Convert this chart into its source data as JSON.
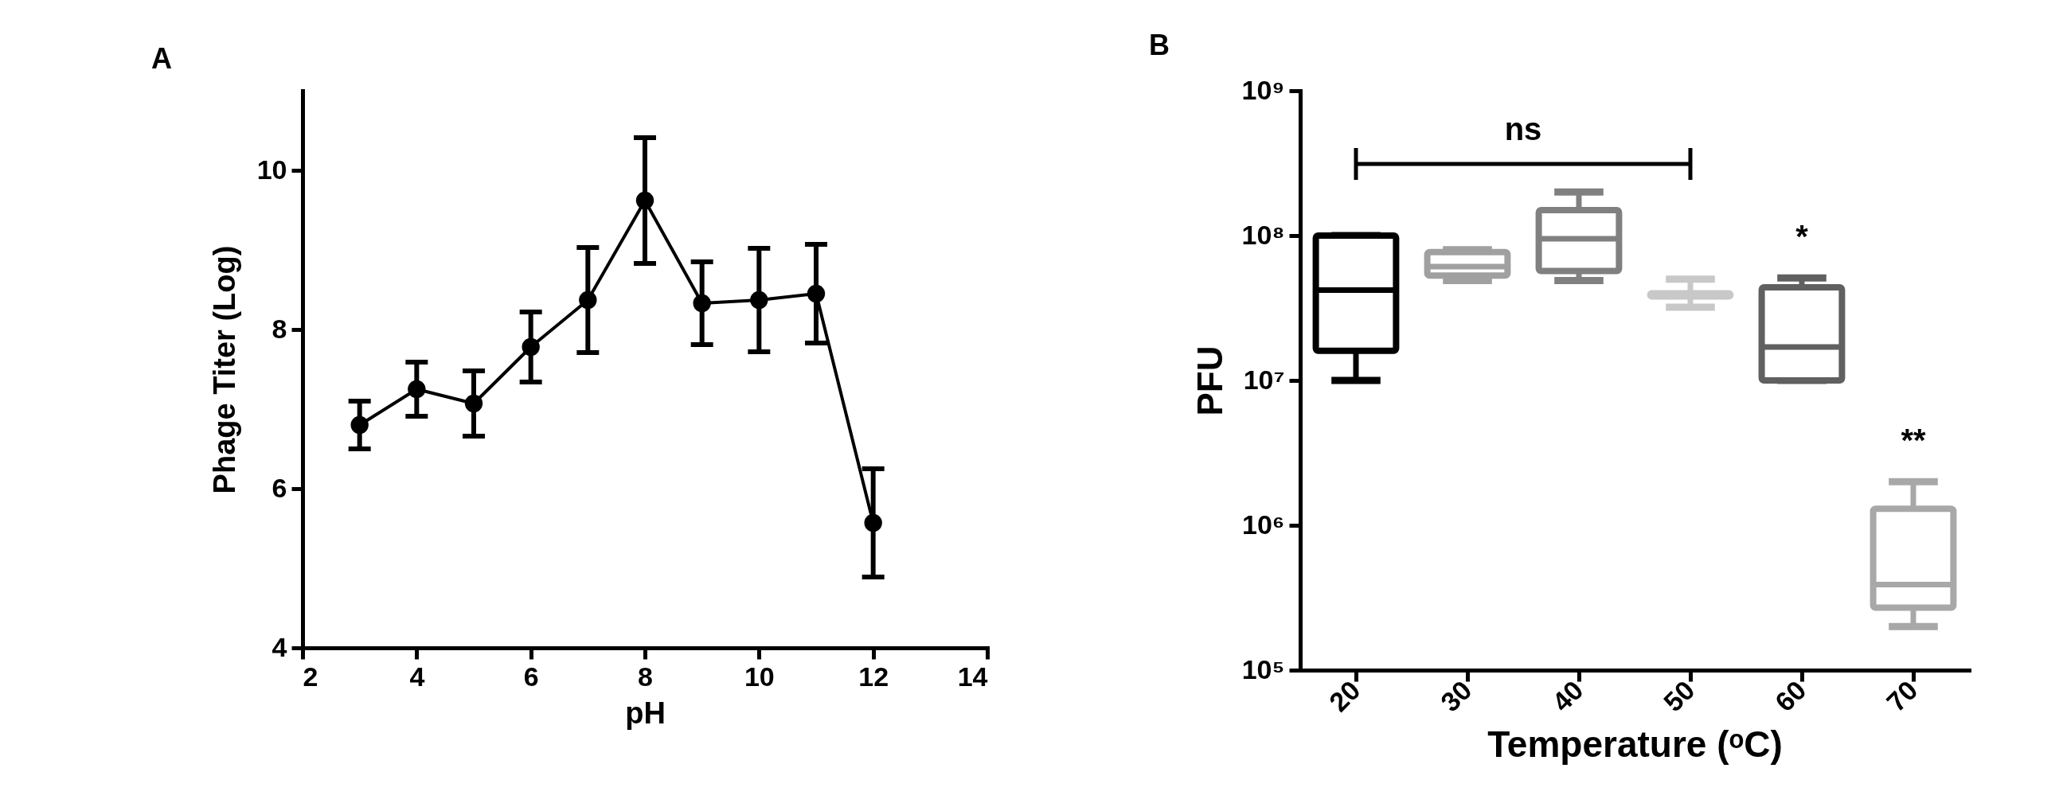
{
  "chart_data": [
    {
      "type": "line",
      "title": "A",
      "xlabel": "pH",
      "ylabel": "Phage Titer (Log)",
      "x": [
        3,
        4,
        5,
        6,
        7,
        8,
        9,
        10,
        11,
        12
      ],
      "series": [
        {
          "color": "#000000",
          "values": [
            6.8,
            7.25,
            7.07,
            7.78,
            8.37,
            9.62,
            8.33,
            8.37,
            8.45,
            5.57
          ],
          "errors": [
            0.3,
            0.34,
            0.41,
            0.44,
            0.66,
            0.79,
            0.52,
            0.65,
            0.62,
            0.68
          ]
        }
      ],
      "marker": "circle",
      "line_style": "solid",
      "xlim": [
        2,
        14
      ],
      "xticks": [
        2,
        4,
        6,
        8,
        10,
        12,
        14
      ],
      "ylim": [
        4,
        11
      ],
      "yticks": [
        4,
        6,
        8,
        10
      ]
    },
    {
      "type": "box",
      "title": "B",
      "xlabel": "Temperature (ᵒC)",
      "ylabel": "PFU",
      "log": "y",
      "categories": [
        "20",
        "30",
        "40",
        "50",
        "60",
        "70"
      ],
      "colors": [
        "#000000",
        "#a0a0a0",
        "#808080",
        "#c8c8c8",
        "#606060",
        "#a8a8a8"
      ],
      "boxes": [
        {
          "low": 10000000,
          "q1": 16000000,
          "median": 42000000,
          "q3": 100000000,
          "high": 100000000
        },
        {
          "low": 49000000,
          "q1": 53000000,
          "median": 61000000,
          "q3": 77000000,
          "high": 80000000
        },
        {
          "low": 49000000,
          "q1": 57000000,
          "median": 95000000,
          "q3": 150000000,
          "high": 200000000
        },
        {
          "low": 32000000,
          "q1": 38000000,
          "median": 39000000,
          "q3": 40000000,
          "high": 50000000
        },
        {
          "low": 10000000,
          "q1": 10000000,
          "median": 17000000,
          "q3": 44000000,
          "high": 51000000
        },
        {
          "low": 200000,
          "q1": 270000,
          "median": 390000,
          "q3": 1300000,
          "high": 2000000
        }
      ],
      "ylim": [
        100000,
        1000000000
      ],
      "yticks": [
        {
          "value": 100000,
          "label": "10⁵"
        },
        {
          "value": 1000000,
          "label": "10⁶"
        },
        {
          "value": 10000000,
          "label": "10⁷"
        },
        {
          "value": 100000000,
          "label": "10⁸"
        },
        {
          "value": 1000000000,
          "label": "10⁹"
        }
      ],
      "annotations": [
        "ns",
        {
          "text": "*",
          "x": "60",
          "y": 51000000
        },
        {
          "text": "**",
          "x": "70",
          "y": 2000000
        }
      ]
    }
  ]
}
